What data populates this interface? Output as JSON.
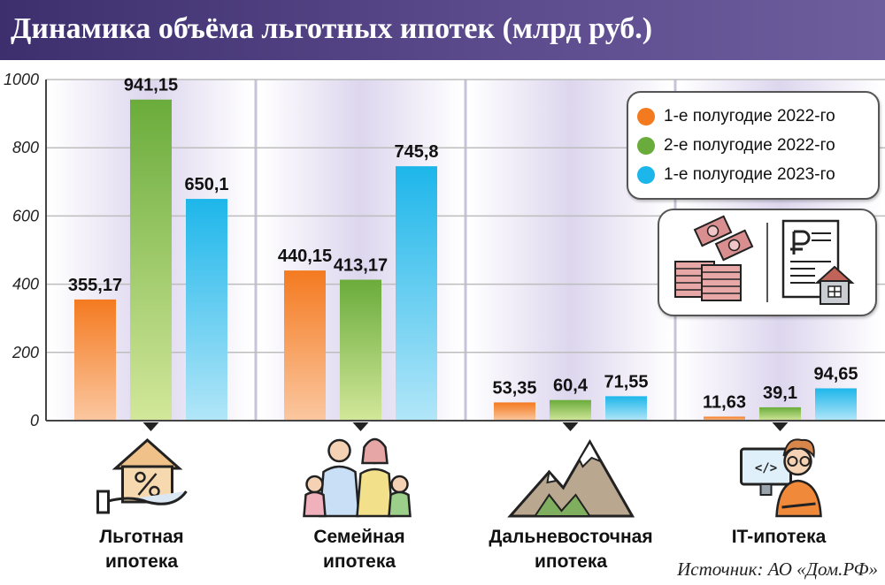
{
  "title": "Динамика объёма льготных ипотек (млрд руб.)",
  "source": "Источник: АО «Дом.РФ»",
  "colors": {
    "series_orange": "#f47a20",
    "series_green": "#6aac3b",
    "series_cyan": "#1db6ea",
    "header": "#4b3c80",
    "group_band": "#e4dff0"
  },
  "chart_data": {
    "type": "bar",
    "categories": [
      "Льготная\nипотека",
      "Семейная\nипотека",
      "Дальневосточная\nипотека",
      "IT-ипотека"
    ],
    "series": [
      {
        "name": "1-е полугодие 2022-го",
        "values": [
          355.17,
          440.15,
          53.35,
          11.63
        ],
        "labels": [
          "355,17",
          "440,15",
          "53,35",
          "11,63"
        ]
      },
      {
        "name": "2-е полугодие 2022-го",
        "values": [
          941.15,
          413.17,
          60.4,
          39.1
        ],
        "labels": [
          "941,15",
          "413,17",
          "60,4",
          "39,1"
        ]
      },
      {
        "name": "1-е полугодие 2023-го",
        "values": [
          650.1,
          745.8,
          71.55,
          94.65
        ],
        "labels": [
          "650,1",
          "745,8",
          "71,55",
          "94,65"
        ]
      }
    ],
    "ylim": [
      0,
      1000
    ],
    "yticks": [
      0,
      200,
      400,
      600,
      800,
      1000
    ],
    "grid": true,
    "legend_position": "top-right"
  },
  "icons": {
    "categories": [
      "house-percent-icon",
      "family-icon",
      "mountains-icon",
      "it-specialist-icon"
    ],
    "legend_box": [
      "money-stacks-icon",
      "mortgage-document-icon"
    ]
  }
}
